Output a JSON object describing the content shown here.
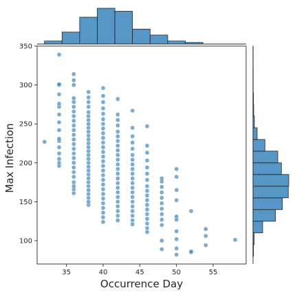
{
  "chart_data": {
    "type": "scatter",
    "xlabel": "Occurrence Day",
    "ylabel": "Max Infection",
    "xlim": [
      31,
      59.5
    ],
    "ylim": [
      70,
      350
    ],
    "x_ticks": [
      35,
      40,
      45,
      50,
      55
    ],
    "y_ticks": [
      100,
      150,
      200,
      250,
      300,
      350
    ],
    "grid": false,
    "colors": {
      "point": "#3d86bd",
      "bar": "#5797c8",
      "edge": "#222222",
      "axis": "#262626"
    },
    "columns": [
      {
        "x": 32,
        "ys": [
          227
        ]
      },
      {
        "x": 34,
        "ys": [
          196,
          200,
          205,
          212,
          220,
          228,
          231,
          242,
          252,
          262,
          272,
          276,
          288,
          300,
          301,
          339
        ]
      },
      {
        "x": 36,
        "ys": [
          161,
          166,
          170,
          175,
          182,
          188,
          194,
          200,
          206,
          212,
          218,
          224,
          230,
          236,
          242,
          248,
          254,
          260,
          266,
          272,
          278,
          283,
          300,
          306,
          314
        ]
      },
      {
        "x": 38,
        "ys": [
          146,
          150,
          155,
          160,
          165,
          170,
          175,
          180,
          185,
          190,
          195,
          200,
          205,
          210,
          215,
          220,
          225,
          230,
          235,
          240,
          245,
          250,
          255,
          260,
          265,
          272,
          278,
          284,
          291
        ]
      },
      {
        "x": 40,
        "ys": [
          124,
          130,
          136,
          142,
          148,
          154,
          160,
          166,
          172,
          178,
          184,
          190,
          196,
          202,
          208,
          214,
          220,
          226,
          232,
          238,
          244,
          250,
          256,
          263,
          270,
          278,
          286,
          296
        ]
      },
      {
        "x": 42,
        "ys": [
          126,
          132,
          138,
          144,
          150,
          156,
          162,
          168,
          174,
          180,
          186,
          192,
          198,
          204,
          210,
          216,
          222,
          228,
          234,
          240,
          248,
          255,
          262,
          282
        ]
      },
      {
        "x": 44,
        "ys": [
          121,
          126,
          132,
          138,
          144,
          150,
          156,
          162,
          168,
          174,
          180,
          186,
          192,
          198,
          204,
          210,
          218,
          226,
          234,
          245,
          267
        ]
      },
      {
        "x": 46,
        "ys": [
          111,
          116,
          122,
          128,
          134,
          140,
          146,
          152,
          158,
          164,
          170,
          178,
          186,
          194,
          203,
          213,
          222,
          247
        ]
      },
      {
        "x": 48,
        "ys": [
          89,
          100,
          120,
          127,
          134,
          141,
          148,
          155,
          162,
          169,
          176,
          180
        ]
      },
      {
        "x": 50,
        "ys": [
          82,
          90,
          102,
          112,
          127,
          131,
          152,
          165,
          182,
          192
        ]
      },
      {
        "x": 52,
        "ys": [
          85,
          86,
          138
        ]
      },
      {
        "x": 54,
        "ys": [
          94,
          106,
          115
        ]
      },
      {
        "x": 58,
        "ys": [
          101
        ]
      }
    ],
    "x_histogram": {
      "bin_edges": [
        32,
        34.4,
        36.8,
        39.2,
        41.6,
        44.0,
        46.4,
        48.8,
        51.2,
        53.6
      ],
      "counts": [
        1,
        4,
        9,
        12,
        11,
        5,
        3,
        1,
        0.5
      ]
    },
    "y_histogram": {
      "bin_edges": [
        80,
        95,
        110,
        125,
        140,
        155,
        170,
        185,
        200,
        215,
        230,
        245,
        260,
        275,
        290,
        305,
        320,
        335,
        350
      ],
      "counts": [
        0.2,
        0.5,
        4.2,
        9.8,
        12.8,
        15.4,
        15.6,
        12.4,
        10.8,
        5.2,
        1.8,
        0.6,
        0.3,
        0.2,
        0.1,
        0.1,
        0.05,
        0.05
      ]
    }
  }
}
